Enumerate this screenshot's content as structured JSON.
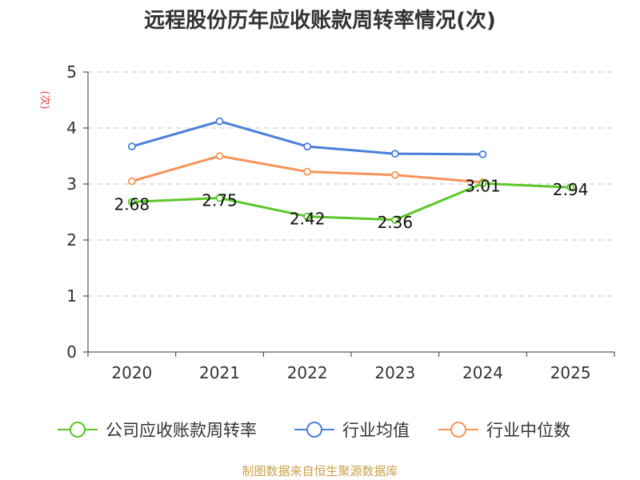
{
  "chart_data": {
    "type": "line",
    "title": "远程股份历年应收账款周转率情况(次)",
    "ylabel": "(次)",
    "xlabel": "",
    "categories": [
      "2020",
      "2021",
      "2022",
      "2023",
      "2024",
      "2025"
    ],
    "ylim": [
      0,
      5
    ],
    "yticks": [
      0,
      1,
      2,
      3,
      4,
      5
    ],
    "grid": true,
    "legend_position": "bottom",
    "series": [
      {
        "name": "公司应收账款周转率",
        "color": "#5cc72a",
        "values": [
          2.68,
          2.75,
          2.42,
          2.36,
          3.01,
          2.94
        ],
        "labels": [
          "2.68",
          "2.75",
          "2.42",
          "2.36",
          "3.01",
          "2.94"
        ]
      },
      {
        "name": "行业均值",
        "color": "#4a7fda",
        "values": [
          3.67,
          4.12,
          3.67,
          3.54,
          3.53,
          null
        ]
      },
      {
        "name": "行业中位数",
        "color": "#f79459",
        "values": [
          3.05,
          3.5,
          3.22,
          3.16,
          3.03,
          null
        ]
      }
    ]
  },
  "footer": {
    "source": "制图数据来自恒生聚源数据库"
  }
}
